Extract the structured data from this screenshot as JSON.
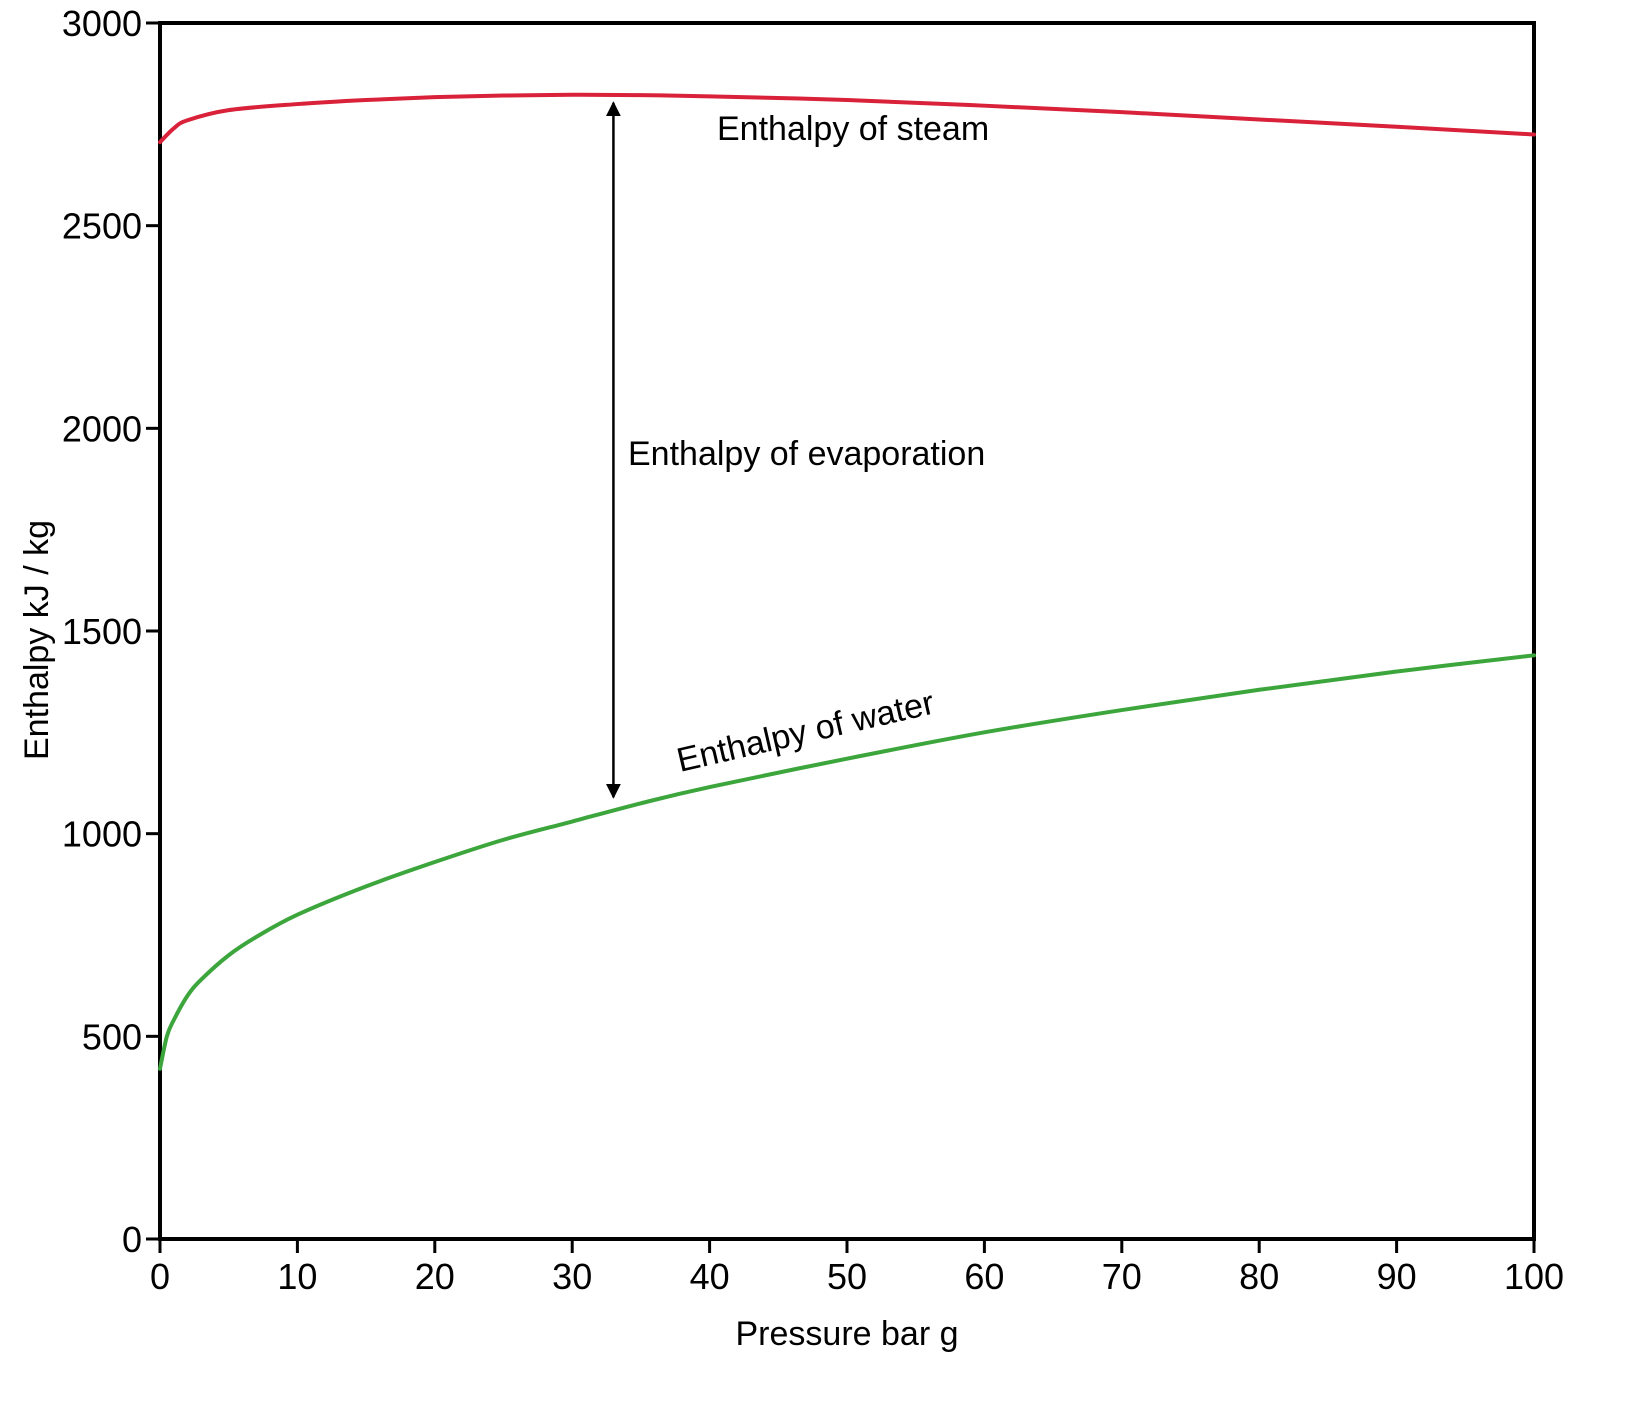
{
  "chart_data": {
    "type": "line",
    "title": "",
    "xlabel": "Pressure bar g",
    "ylabel": "Enthalpy kJ / kg",
    "xlim": [
      0,
      100
    ],
    "ylim": [
      0,
      3000
    ],
    "x_ticks": [
      0,
      10,
      20,
      30,
      40,
      50,
      60,
      70,
      80,
      90,
      100
    ],
    "y_ticks": [
      0,
      500,
      1000,
      1500,
      2000,
      2500,
      3000
    ],
    "grid": false,
    "legend": "none",
    "series": [
      {
        "name": "Enthalpy of steam",
        "color": "#d9213a",
        "x": [
          0,
          1,
          2,
          5,
          10,
          15,
          20,
          25,
          30,
          35,
          40,
          50,
          60,
          70,
          80,
          90,
          100
        ],
        "y": [
          2706,
          2740,
          2760,
          2785,
          2800,
          2810,
          2817,
          2821,
          2823,
          2822,
          2819,
          2810,
          2796,
          2780,
          2762,
          2744,
          2725
        ]
      },
      {
        "name": "Enthalpy of water",
        "color": "#3ca63c",
        "x": [
          0,
          0.5,
          1,
          2,
          3,
          5,
          7,
          10,
          15,
          20,
          25,
          30,
          35,
          40,
          50,
          60,
          70,
          80,
          90,
          100
        ],
        "y": [
          420,
          500,
          540,
          600,
          640,
          700,
          745,
          800,
          870,
          930,
          985,
          1030,
          1075,
          1115,
          1185,
          1250,
          1305,
          1355,
          1400,
          1440
        ]
      }
    ],
    "annotations": {
      "steam_label": "Enthalpy of steam",
      "water_label": "Enthalpy of water",
      "evaporation_label": "Enthalpy of evaporation",
      "evaporation_arrow": {
        "x": 33,
        "y_top": 2823,
        "y_bottom": 1070
      }
    }
  }
}
